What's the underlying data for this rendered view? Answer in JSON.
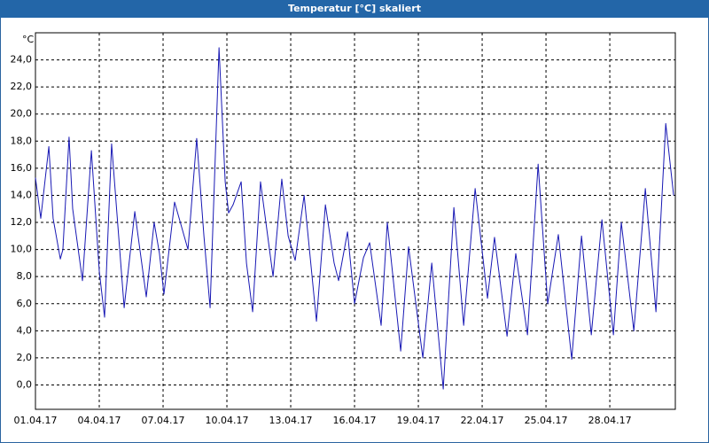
{
  "chart_data": {
    "type": "line",
    "title": "Temperatur [°C] skaliert",
    "ylabel": "°C",
    "x": [
      1.0,
      1.25,
      1.63,
      1.83,
      2.17,
      2.29,
      2.58,
      2.75,
      3.21,
      3.63,
      4.0,
      4.25,
      4.58,
      5.17,
      5.67,
      6.21,
      6.58,
      6.83,
      7.04,
      7.54,
      8.17,
      8.58,
      8.92,
      9.21,
      9.63,
      9.92,
      10.08,
      10.29,
      10.67,
      10.92,
      11.21,
      11.58,
      12.17,
      12.58,
      12.88,
      13.21,
      13.63,
      14.21,
      14.63,
      15.04,
      15.25,
      15.67,
      16.0,
      16.42,
      16.71,
      17.25,
      17.54,
      18.17,
      18.54,
      19.21,
      19.63,
      20.17,
      20.67,
      21.13,
      21.67,
      22.25,
      22.58,
      23.17,
      23.58,
      24.13,
      24.63,
      25.08,
      25.58,
      26.21,
      26.67,
      27.13,
      27.63,
      28.17,
      28.54,
      29.13,
      29.67,
      30.17,
      30.63,
      31.0
    ],
    "series": [
      {
        "color": "#1818b4",
        "values": [
          15.3,
          12.3,
          17.6,
          12.3,
          9.3,
          10,
          18.3,
          13,
          7.7,
          17.3,
          8.4,
          5,
          17.8,
          5.7,
          12.8,
          6.5,
          12,
          9.7,
          6.7,
          13.5,
          10,
          18.2,
          11,
          5.7,
          24.9,
          15,
          12.7,
          13.3,
          15,
          9,
          5.4,
          15,
          8,
          15.2,
          11,
          9.2,
          14,
          4.7,
          13.3,
          9,
          7.7,
          11.3,
          6,
          9.4,
          10.5,
          4.4,
          12,
          2.5,
          10.2,
          2,
          9,
          -0.3,
          13.1,
          4.4,
          14.5,
          6.4,
          10.9,
          3.6,
          9.7,
          3.7,
          16.3,
          6,
          11.1,
          1.9,
          11,
          3.7,
          12.2,
          3.7,
          12,
          4,
          14.5,
          5.4,
          19.3,
          14
        ]
      }
    ],
    "xlim": [
      1,
      31.08
    ],
    "xticks": [
      {
        "value": 1,
        "label": "01.04.17"
      },
      {
        "value": 4,
        "label": "04.04.17"
      },
      {
        "value": 7,
        "label": "07.04.17"
      },
      {
        "value": 10,
        "label": "10.04.17"
      },
      {
        "value": 13,
        "label": "13.04.17"
      },
      {
        "value": 16,
        "label": "16.04.17"
      },
      {
        "value": 19,
        "label": "19.04.17"
      },
      {
        "value": 22,
        "label": "22.04.17"
      },
      {
        "value": 25,
        "label": "25.04.17"
      },
      {
        "value": 28,
        "label": "28.04.17"
      }
    ],
    "ylim": [
      -1.8,
      26
    ],
    "yticks": [
      {
        "value": 0,
        "label": "0,0"
      },
      {
        "value": 2,
        "label": "2,0"
      },
      {
        "value": 4,
        "label": "4,0"
      },
      {
        "value": 6,
        "label": "6,0"
      },
      {
        "value": 8,
        "label": "8,0"
      },
      {
        "value": 10,
        "label": "10,0"
      },
      {
        "value": 12,
        "label": "12,0"
      },
      {
        "value": 14,
        "label": "14,0"
      },
      {
        "value": 16,
        "label": "16,0"
      },
      {
        "value": 18,
        "label": "18,0"
      },
      {
        "value": 20,
        "label": "20,0"
      },
      {
        "value": 22,
        "label": "22,0"
      },
      {
        "value": 24,
        "label": "24,0"
      }
    ],
    "grid": true
  }
}
